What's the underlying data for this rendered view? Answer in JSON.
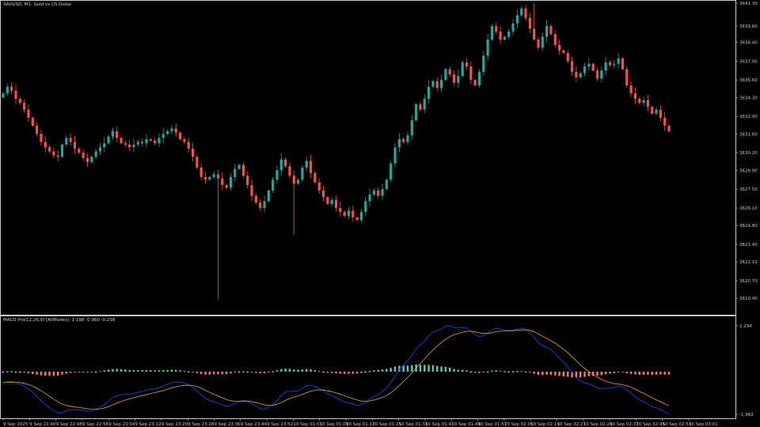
{
  "window": {
    "main_title": "XAUUSD, M1:  Gold vs US Dollar",
    "indicator_title": "MACD Pro(12,26,9) [AllModes]  -1.198  -0.960  -0.238"
  },
  "colors": {
    "background": "#000000",
    "frame": "#c8c8c8",
    "bull": "#26a69a",
    "bear": "#ef5350",
    "macd_line": "#1f3bc8",
    "signal_line": "#e6a23c",
    "hist_pos": "#5fc7b8",
    "hist_neg": "#f07a7a",
    "hist_flat": "#ffffff"
  },
  "chart_data": [
    {
      "type": "candlestick",
      "symbol": "XAUUSD",
      "timeframe": "M1",
      "ylim": [
        3619.0,
        3641.3
      ],
      "y_ticks": [
        "3641.30",
        "3639.60",
        "3638.40",
        "3637.00",
        "3635.60",
        "3634.30",
        "3632.90",
        "3631.60",
        "3630.20",
        "3628.90",
        "3627.50",
        "3626.10",
        "3624.80",
        "3623.40",
        "3622.10",
        "3620.70",
        "3619.40"
      ],
      "x_ticks": [
        "9 Sep 2025",
        "9 Sep 22:40",
        "9 Sep 22:48",
        "9 Sep 22:56",
        "9 Sep 23:04",
        "9 Sep 23:12",
        "9 Sep 23:20",
        "9 Sep 23:28",
        "9 Sep 23:36",
        "9 Sep 23:44",
        "9 Sep 23:52",
        "10 Sep 01:01",
        "10 Sep 01:09",
        "10 Sep 01:17",
        "10 Sep 01:25",
        "10 Sep 01:33",
        "10 Sep 01:41",
        "10 Sep 01:49",
        "10 Sep 01:57",
        "10 Sep 02:05",
        "10 Sep 02:13",
        "10 Sep 02:21",
        "10 Sep 02:29",
        "10 Sep 02:37",
        "10 Sep 02:45",
        "10 Sep 02:53",
        "10 Sep 03:01"
      ],
      "price_path": [
        3634.6,
        3635.1,
        3634.8,
        3634.2,
        3633.9,
        3633.4,
        3632.8,
        3632.2,
        3631.6,
        3631.0,
        3630.6,
        3630.3,
        3630.0,
        3629.9,
        3630.8,
        3631.3,
        3631.0,
        3630.5,
        3630.2,
        3629.8,
        3629.5,
        3629.9,
        3630.3,
        3630.6,
        3630.9,
        3631.4,
        3631.8,
        3631.3,
        3630.9,
        3630.8,
        3630.6,
        3630.8,
        3631.0,
        3630.9,
        3631.2,
        3631.1,
        3630.9,
        3631.3,
        3631.6,
        3631.8,
        3632.0,
        3631.7,
        3631.2,
        3631.0,
        3630.5,
        3629.9,
        3629.1,
        3628.4,
        3628.2,
        3628.4,
        3628.6,
        3628.3,
        3627.8,
        3627.6,
        3628.4,
        3629.0,
        3629.3,
        3628.5,
        3627.8,
        3627.0,
        3626.5,
        3626.1,
        3626.6,
        3627.4,
        3628.2,
        3628.9,
        3629.7,
        3629.2,
        3628.5,
        3627.9,
        3628.2,
        3629.1,
        3629.6,
        3628.7,
        3628.0,
        3627.4,
        3626.9,
        3626.4,
        3626.7,
        3626.1,
        3625.8,
        3625.5,
        3625.9,
        3625.4,
        3625.2,
        3625.8,
        3626.6,
        3627.1,
        3627.4,
        3627.0,
        3627.5,
        3628.2,
        3629.4,
        3630.6,
        3631.2,
        3631.0,
        3631.5,
        3632.6,
        3633.8,
        3633.4,
        3634.2,
        3635.1,
        3635.5,
        3635.0,
        3635.6,
        3636.4,
        3636.0,
        3635.4,
        3635.9,
        3636.9,
        3636.6,
        3635.6,
        3635.2,
        3636.2,
        3637.4,
        3638.6,
        3639.6,
        3639.2,
        3638.6,
        3638.8,
        3639.2,
        3639.8,
        3640.4,
        3640.9,
        3640.2,
        3639.4,
        3638.6,
        3638.0,
        3638.8,
        3639.6,
        3639.0,
        3638.2,
        3637.8,
        3637.6,
        3637.0,
        3636.2,
        3635.8,
        3636.1,
        3636.6,
        3636.8,
        3636.3,
        3635.7,
        3636.3,
        3636.9,
        3636.7,
        3636.8,
        3637.2,
        3636.4,
        3635.2,
        3634.6,
        3634.2,
        3633.9,
        3634.1,
        3633.6,
        3633.1,
        3633.4,
        3632.8,
        3632.2,
        3631.8
      ],
      "spikes": {
        "low": [
          [
            51,
            3619.3
          ],
          [
            69,
            3624.1
          ]
        ],
        "high": [
          [
            126,
            3641.3
          ]
        ]
      }
    },
    {
      "type": "macd",
      "name": "MACD Pro(12,26,9) [AllModes]",
      "values": {
        "macd": -1.198,
        "signal": -0.96,
        "histogram": -0.238
      },
      "ylim": [
        -1.962,
        2.294
      ],
      "y_ticks": [
        "2.294",
        "-1.962"
      ]
    }
  ]
}
